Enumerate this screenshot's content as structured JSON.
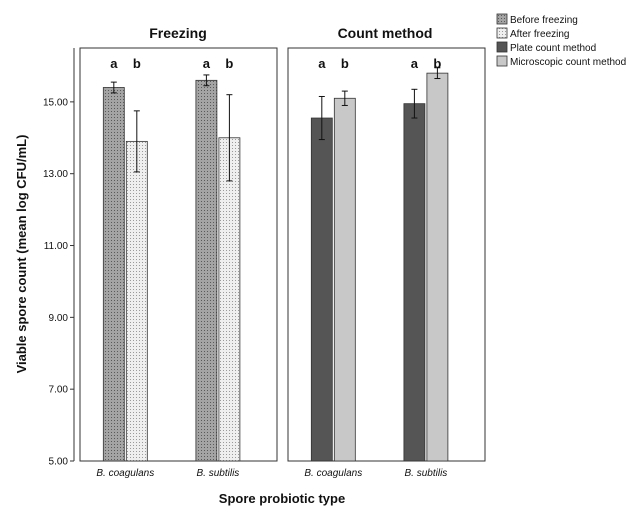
{
  "chart_data": {
    "type": "bar",
    "ylabel": "Viable spore count (mean log CFU/mL)",
    "xlabel": "Spore probiotic type",
    "ylim": [
      5.0,
      16.5
    ],
    "yticks": [
      "5.00",
      "7.00",
      "9.00",
      "11.00",
      "13.00",
      "15.00"
    ],
    "ytick_values": [
      5,
      7,
      9,
      11,
      13,
      15
    ],
    "categories": [
      "B. coagulans",
      "B. subtilis"
    ],
    "legend_position": "top-right",
    "panels": [
      {
        "title": "Freezing",
        "series": [
          {
            "name": "Before freezing",
            "values": [
              15.4,
              15.6
            ],
            "err_low": [
              15.25,
              15.45
            ],
            "err_high": [
              15.55,
              15.75
            ],
            "letters": [
              "a",
              "a"
            ],
            "color": "#a8a8a8",
            "pattern": "dots-dark"
          },
          {
            "name": "After freezing",
            "values": [
              13.9,
              14.0
            ],
            "err_low": [
              13.05,
              12.8
            ],
            "err_high": [
              14.75,
              15.2
            ],
            "letters": [
              "b",
              "b"
            ],
            "color": "#eaeaea",
            "pattern": "dots-light"
          }
        ]
      },
      {
        "title": "Count method",
        "series": [
          {
            "name": "Plate count method",
            "values": [
              14.55,
              14.95
            ],
            "err_low": [
              13.95,
              14.55
            ],
            "err_high": [
              15.15,
              15.35
            ],
            "letters": [
              "a",
              "a"
            ],
            "color": "#555555",
            "pattern": "solid"
          },
          {
            "name": "Microscopic count method",
            "values": [
              15.1,
              15.8
            ],
            "err_low": [
              14.9,
              15.65
            ],
            "err_high": [
              15.3,
              15.95
            ],
            "letters": [
              "b",
              "b"
            ],
            "color": "#c8c8c8",
            "pattern": "solid"
          }
        ]
      }
    ]
  }
}
